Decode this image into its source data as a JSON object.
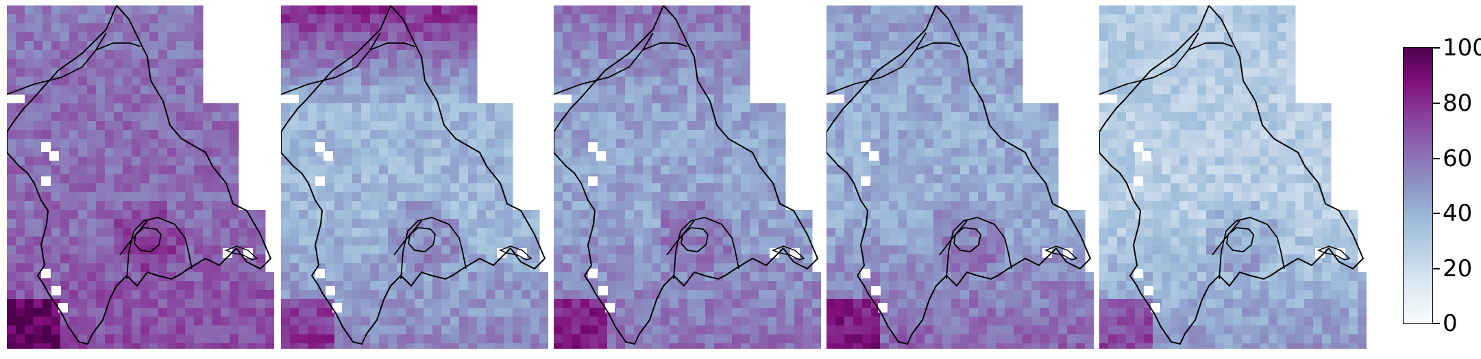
{
  "figure": {
    "panels": [
      "panel-1",
      "panel-2",
      "panel-3",
      "panel-4",
      "panel-5"
    ],
    "colorbar": {
      "ticks": [
        "0",
        "20",
        "40",
        "60",
        "80",
        "100"
      ],
      "range": [
        0,
        100
      ],
      "colormap": "BuPu",
      "colors": [
        "#f7fcfd",
        "#e0ecf4",
        "#bfd3e6",
        "#9ebcda",
        "#8c96c6",
        "#8c6bb1",
        "#88419d",
        "#810f7c",
        "#4d004b"
      ]
    },
    "panel_levels": [
      {
        "base": 62,
        "south": 72,
        "north": 58
      },
      {
        "base": 38,
        "south": 55,
        "north": 80
      },
      {
        "base": 45,
        "south": 62,
        "north": 60
      },
      {
        "base": 42,
        "south": 66,
        "north": 48
      },
      {
        "base": 28,
        "south": 50,
        "north": 30
      }
    ]
  }
}
